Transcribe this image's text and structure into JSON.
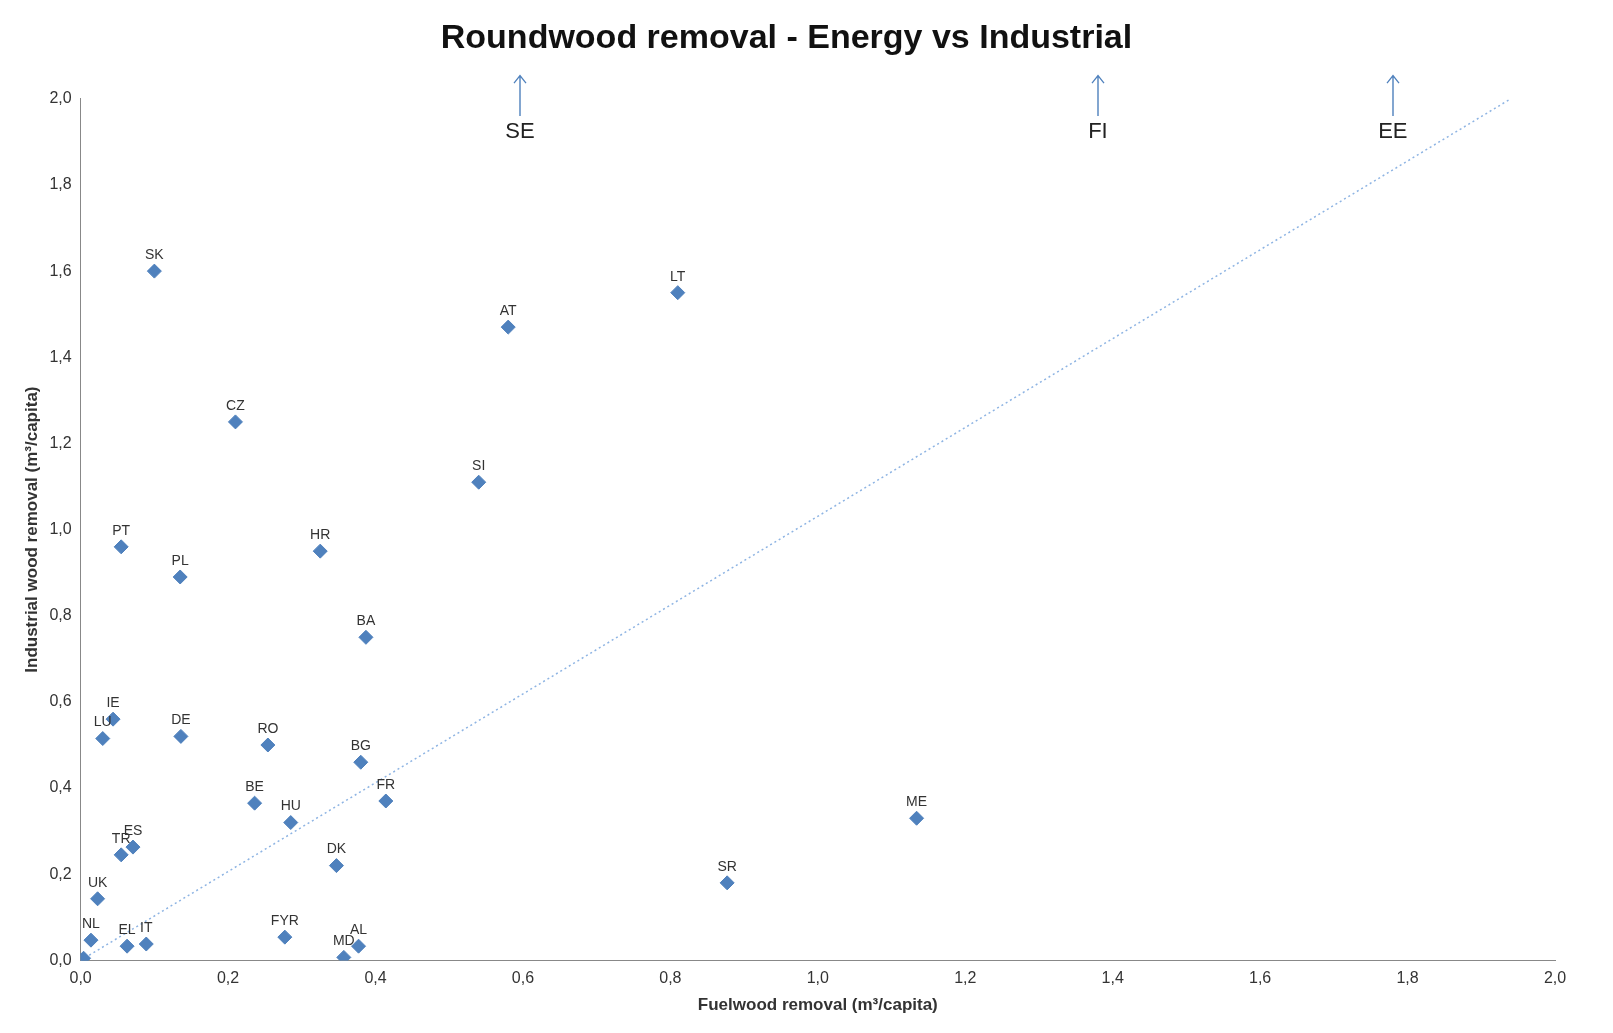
{
  "chart_data": {
    "type": "scatter",
    "title": "Roundwood removal - Energy vs Industrial",
    "xlabel": "Fuelwood removal (m³/capita)",
    "ylabel": "Industrial wood removal (m³/capita)",
    "xlim": [
      0,
      2
    ],
    "ylim": [
      0,
      2
    ],
    "xticks": [
      {
        "value": 0,
        "label": "0,0"
      },
      {
        "value": 0.2,
        "label": "0,2"
      },
      {
        "value": 0.4,
        "label": "0,4"
      },
      {
        "value": 0.6,
        "label": "0,6"
      },
      {
        "value": 0.8,
        "label": "0,8"
      },
      {
        "value": 1,
        "label": "1,0"
      },
      {
        "value": 1.2,
        "label": "1,2"
      },
      {
        "value": 1.4,
        "label": "1,4"
      },
      {
        "value": 1.6,
        "label": "1,6"
      },
      {
        "value": 1.8,
        "label": "1,8"
      },
      {
        "value": 2,
        "label": "2,0"
      }
    ],
    "yticks": [
      {
        "value": 0,
        "label": "0,0"
      },
      {
        "value": 0.2,
        "label": "0,2"
      },
      {
        "value": 0.4,
        "label": "0,4"
      },
      {
        "value": 0.6,
        "label": "0,6"
      },
      {
        "value": 0.8,
        "label": "0,8"
      },
      {
        "value": 1,
        "label": "1,0"
      },
      {
        "value": 1.2,
        "label": "1,2"
      },
      {
        "value": 1.4,
        "label": "1,4"
      },
      {
        "value": 1.6,
        "label": "1,6"
      },
      {
        "value": 1.8,
        "label": "1,8"
      },
      {
        "value": 2,
        "label": "2,0"
      }
    ],
    "grid": false,
    "legend": false,
    "marker": "diamond",
    "series": [
      {
        "type": "scatter",
        "color": "#4f81bd",
        "x": [
          0.1,
          0.81,
          0.58,
          0.21,
          0.54,
          0.055,
          0.135,
          0.325,
          0.387,
          0.044,
          0.03,
          0.136,
          0.254,
          0.38,
          0.236,
          0.285,
          0.414,
          1.134,
          0.877,
          0.347,
          0.055,
          0.071,
          0.023,
          0.014,
          0.063,
          0.089,
          0.277,
          0.357,
          0.377,
          0.0,
          0.004
        ],
        "values": [
          1.6,
          1.55,
          1.47,
          1.25,
          1.11,
          0.96,
          0.89,
          0.95,
          0.75,
          0.56,
          0.515,
          0.52,
          0.5,
          0.46,
          0.365,
          0.32,
          0.37,
          0.33,
          0.18,
          0.22,
          0.245,
          0.263,
          0.143,
          0.047,
          0.033,
          0.038,
          0.054,
          0.007,
          0.033,
          0.0,
          0.005
        ],
        "value_labels": [
          "SK",
          "LT",
          "AT",
          "CZ",
          "SI",
          "PT",
          "PL",
          "HR",
          "BA",
          "IE",
          "LU",
          "DE",
          "RO",
          "BG",
          "BE",
          "HU",
          "FR",
          "ME",
          "SR",
          "DK",
          "TR",
          "ES",
          "UK",
          "NL",
          "EL",
          "IT",
          "FYR",
          "MD",
          "AL",
          null,
          null
        ]
      },
      {
        "type": "line",
        "color": "#8eb4e3",
        "line_style": "dotted",
        "marker": "none",
        "x": [
          0,
          1.94
        ],
        "values": [
          0,
          2.0
        ]
      }
    ],
    "annotations": [
      "SE",
      "FI",
      "EE"
    ]
  }
}
